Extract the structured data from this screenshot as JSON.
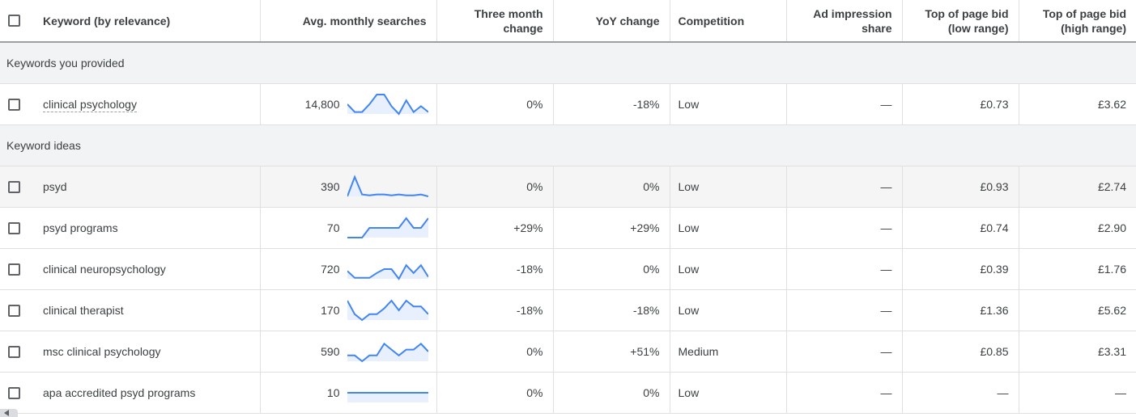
{
  "headers": {
    "keyword": "Keyword (by relevance)",
    "avg": "Avg. monthly searches",
    "three_month_l1": "Three month",
    "three_month_l2": "change",
    "yoy": "YoY change",
    "competition": "Competition",
    "ad_impression_l1": "Ad impression",
    "ad_impression_l2": "share",
    "bid_low_l1": "Top of page bid",
    "bid_low_l2": "(low range)",
    "bid_high_l1": "Top of page bid",
    "bid_high_l2": "(high range)"
  },
  "groups": {
    "provided": "Keywords you provided",
    "ideas": "Keyword ideas"
  },
  "accent_color": "#4285f4",
  "rows": [
    {
      "keyword": "clinical psychology",
      "avg": "14,800",
      "three": "0%",
      "yoy": "-18%",
      "competition": "Low",
      "ad_impression": "—",
      "bid_low": "£0.73",
      "bid_high": "£3.62",
      "trend": [
        5,
        1,
        1,
        5,
        10,
        10,
        4,
        0,
        7,
        1,
        4,
        1
      ]
    },
    {
      "keyword": "psyd",
      "avg": "390",
      "three": "0%",
      "yoy": "0%",
      "competition": "Low",
      "ad_impression": "—",
      "bid_low": "£0.93",
      "bid_high": "£2.74",
      "trend": [
        0,
        10,
        1,
        0.5,
        1,
        1,
        0.5,
        1,
        0.5,
        0.5,
        1,
        0
      ]
    },
    {
      "keyword": "psyd programs",
      "avg": "70",
      "three": "+29%",
      "yoy": "+29%",
      "competition": "Low",
      "ad_impression": "—",
      "bid_low": "£0.74",
      "bid_high": "£2.90",
      "trend": [
        0,
        0,
        0,
        5,
        5,
        5,
        5,
        5,
        10,
        5,
        5,
        10
      ]
    },
    {
      "keyword": "clinical neuropsychology",
      "avg": "720",
      "three": "-18%",
      "yoy": "0%",
      "competition": "Low",
      "ad_impression": "—",
      "bid_low": "£0.39",
      "bid_high": "£1.76",
      "trend": [
        4,
        0.5,
        0.5,
        0.5,
        3,
        5,
        5,
        0,
        7,
        3,
        7,
        1
      ]
    },
    {
      "keyword": "clinical therapist",
      "avg": "170",
      "three": "-18%",
      "yoy": "-18%",
      "competition": "Low",
      "ad_impression": "—",
      "bid_low": "£1.36",
      "bid_high": "£5.62",
      "trend": [
        10,
        3,
        0,
        3,
        3,
        6,
        10,
        5,
        10,
        7,
        7,
        3
      ]
    },
    {
      "keyword": "msc clinical psychology",
      "avg": "590",
      "three": "0%",
      "yoy": "+51%",
      "competition": "Medium",
      "ad_impression": "—",
      "bid_low": "£0.85",
      "bid_high": "£3.31",
      "trend": [
        3,
        3,
        0,
        3,
        3,
        9,
        6,
        3,
        6,
        6,
        9,
        5
      ]
    },
    {
      "keyword": "apa accredited psyd programs",
      "avg": "10",
      "three": "0%",
      "yoy": "0%",
      "competition": "Low",
      "ad_impression": "—",
      "bid_low": "—",
      "bid_high": "—",
      "trend": [
        5,
        5,
        5,
        5,
        5,
        5,
        5,
        5,
        5,
        5,
        5,
        5
      ]
    }
  ]
}
